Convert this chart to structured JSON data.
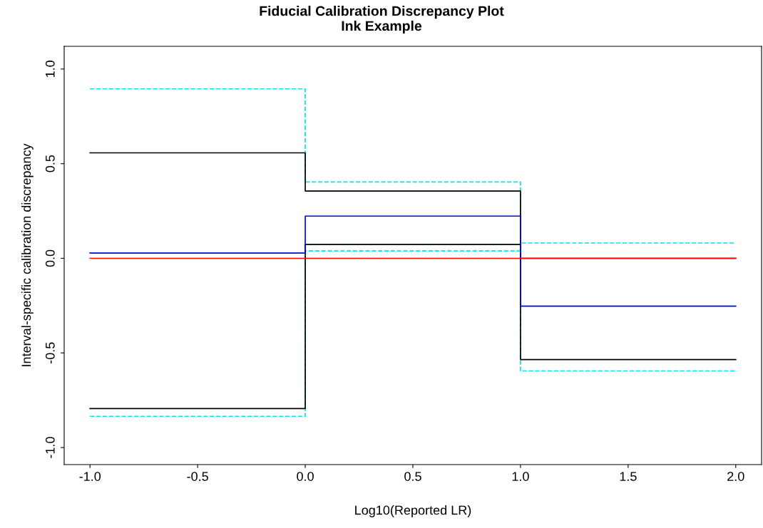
{
  "chart_data": {
    "type": "step",
    "title": "Fiducial Calibration Discrepancy Plot\nInk Example",
    "xlabel": "Log10(Reported LR)",
    "ylabel": "Interval-specific calibration discrepancy",
    "x": [
      -1,
      0,
      1,
      2
    ],
    "series": [
      {
        "color": "#00e5ee",
        "line_style": "dashed",
        "values": [
          0.895,
          0.403,
          0.081,
          0.081
        ]
      },
      {
        "color": "#00e5ee",
        "line_style": "dashed",
        "values": [
          -0.835,
          0.039,
          -0.595,
          -0.595
        ]
      },
      {
        "color": "#000000",
        "line_style": "solid",
        "values": [
          0.557,
          0.355,
          0.0,
          0.0
        ]
      },
      {
        "color": "#000000",
        "line_style": "solid",
        "values": [
          -0.794,
          0.073,
          -0.535,
          -0.535
        ]
      },
      {
        "color": "#0000ff",
        "line_style": "solid",
        "values": [
          0.028,
          0.223,
          -0.253,
          -0.253
        ]
      },
      {
        "color": "#ff0000",
        "line_style": "solid",
        "values": [
          0.0,
          0.0,
          0.0,
          0.0
        ]
      }
    ],
    "xlim": [
      -1.12,
      2.12
    ],
    "ylim": [
      -1.09,
      1.12
    ],
    "xticks": [
      {
        "value": -1,
        "label": "-1.0"
      },
      {
        "value": -0.5,
        "label": "-0.5"
      },
      {
        "value": 0,
        "label": "0.0"
      },
      {
        "value": 0.5,
        "label": "0.5"
      },
      {
        "value": 1,
        "label": "1.0"
      },
      {
        "value": 1.5,
        "label": "1.5"
      },
      {
        "value": 2,
        "label": "2.0"
      }
    ],
    "yticks": [
      {
        "value": -1,
        "label": "-1.0"
      },
      {
        "value": -0.5,
        "label": "-0.5"
      },
      {
        "value": 0,
        "label": "0.0"
      },
      {
        "value": 0.5,
        "label": "0.5"
      },
      {
        "value": 1,
        "label": "1.0"
      }
    ],
    "grid": false
  }
}
